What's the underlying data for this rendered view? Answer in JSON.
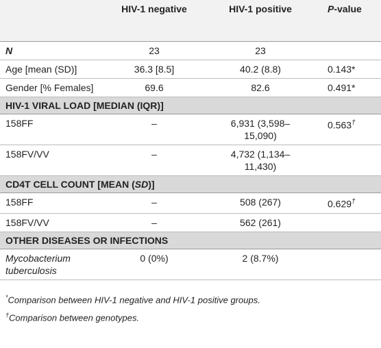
{
  "table": {
    "header": {
      "negative": "HIV-1 negative",
      "positive": "HIV-1 positive",
      "p_italic": "P",
      "p_rest": "-value"
    },
    "rows": [
      {
        "label": "N",
        "neg": "23",
        "pos": "23"
      },
      {
        "label": "Age [mean (SD)]",
        "neg": "36.3 [8.5]",
        "pos": "40.2 (8.8)",
        "p": "0.143*"
      },
      {
        "label": "Gender [% Females]",
        "neg": "69.6",
        "pos": "82.6",
        "p": "0.491*"
      },
      {
        "section": [
          "HIV-1 VIRAL LOAD [MEDIAN (IQR)]"
        ]
      },
      {
        "label": "158FF",
        "neg": "–",
        "pos": "6,931 (3,598–15,090)",
        "p": "0.563",
        "p_mark": "†"
      },
      {
        "label": "158FV/VV",
        "neg": "–",
        "pos": "4,732 (1,134–11,430)"
      },
      {
        "section": [
          "CD4T CELL COUNT [MEAN (",
          "SD",
          ")]"
        ]
      },
      {
        "label": "158FF",
        "neg": "–",
        "pos": "508 (267)",
        "p": "0.629",
        "p_mark": "†"
      },
      {
        "label": "158FV/VV",
        "neg": "–",
        "pos": "562 (261)"
      },
      {
        "section": [
          "OTHER DISEASES OR INFECTIONS"
        ]
      },
      {
        "label": "Mycobacterium tuberculosis",
        "neg": "0 (0%)",
        "pos": "2 (8.7%)"
      }
    ]
  },
  "footnotes": [
    {
      "mark": "*",
      "text": "Comparison between HIV-1 negative and HIV-1 positive groups."
    },
    {
      "mark": "†",
      "text": "Comparison between genotypes."
    }
  ]
}
